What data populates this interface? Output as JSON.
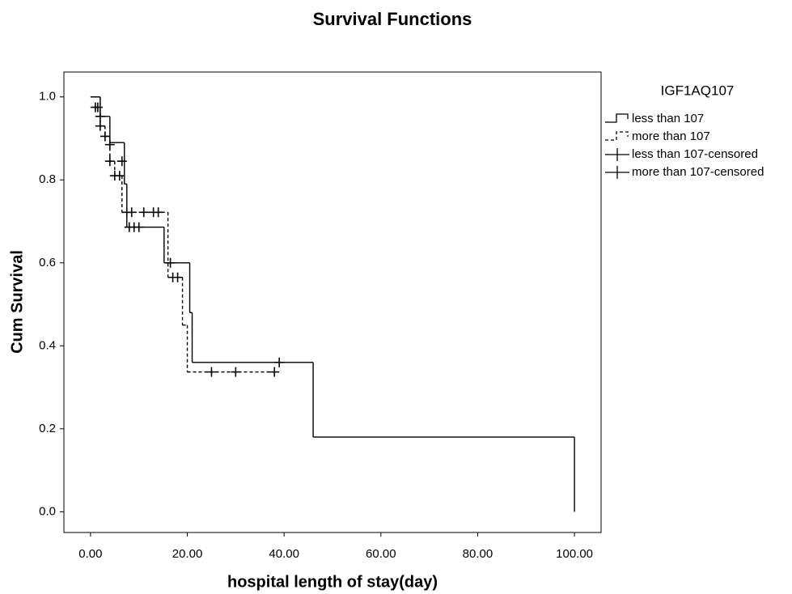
{
  "chart_data": {
    "type": "step",
    "title": "Survival Functions",
    "x_label": "hospital length of stay(day)",
    "y_label": "Cum Survival",
    "legend_title": "IGF1AQ107",
    "legend": "right",
    "xlim": [
      -5.5,
      105.5
    ],
    "ylim": [
      -0.05,
      1.06
    ],
    "xticks": [
      {
        "value": 0,
        "label": "0.00"
      },
      {
        "value": 20,
        "label": "20.00"
      },
      {
        "value": 40,
        "label": "40.00"
      },
      {
        "value": 60,
        "label": "60.00"
      },
      {
        "value": 80,
        "label": "80.00"
      },
      {
        "value": 100,
        "label": "100.00"
      }
    ],
    "yticks": [
      {
        "value": 0,
        "label": "0.0"
      },
      0.2,
      0.4,
      0.6,
      0.8,
      {
        "value": 1,
        "label": "1.0"
      }
    ],
    "series": [
      {
        "name": "less than 107",
        "color": "#000000",
        "style": "solid",
        "x": [
          0,
          2,
          4,
          7,
          7.5,
          15.2,
          20.5,
          21,
          46,
          100
        ],
        "values": [
          1.0,
          0.953,
          0.89,
          0.79,
          0.686,
          0.6,
          0.48,
          0.36,
          0.18,
          0.0
        ]
      },
      {
        "name": "more than 107",
        "color": "#000000",
        "style": "dashed",
        "x": [
          0,
          2,
          3,
          4,
          5,
          6.5,
          16,
          19,
          20,
          38.5
        ],
        "values": [
          1.0,
          0.93,
          0.905,
          0.845,
          0.81,
          0.722,
          0.565,
          0.45,
          0.337,
          0.337
        ]
      },
      {
        "name": "less than 107-censored",
        "color": "#000000",
        "marker": "+",
        "x": [
          1,
          2,
          4,
          6.5,
          8,
          9,
          10,
          16.5,
          39
        ],
        "values": [
          0.975,
          0.953,
          0.885,
          0.845,
          0.686,
          0.686,
          0.686,
          0.6,
          0.36
        ]
      },
      {
        "name": "more than 107-censored",
        "color": "#000000",
        "marker": "+",
        "x": [
          1.5,
          2,
          3,
          4,
          5,
          6,
          7.5,
          8.5,
          11,
          13,
          14,
          17,
          18,
          25,
          30,
          38
        ],
        "values": [
          0.975,
          0.93,
          0.905,
          0.845,
          0.81,
          0.81,
          0.722,
          0.722,
          0.722,
          0.722,
          0.722,
          0.565,
          0.565,
          0.337,
          0.337,
          0.337
        ]
      }
    ]
  }
}
